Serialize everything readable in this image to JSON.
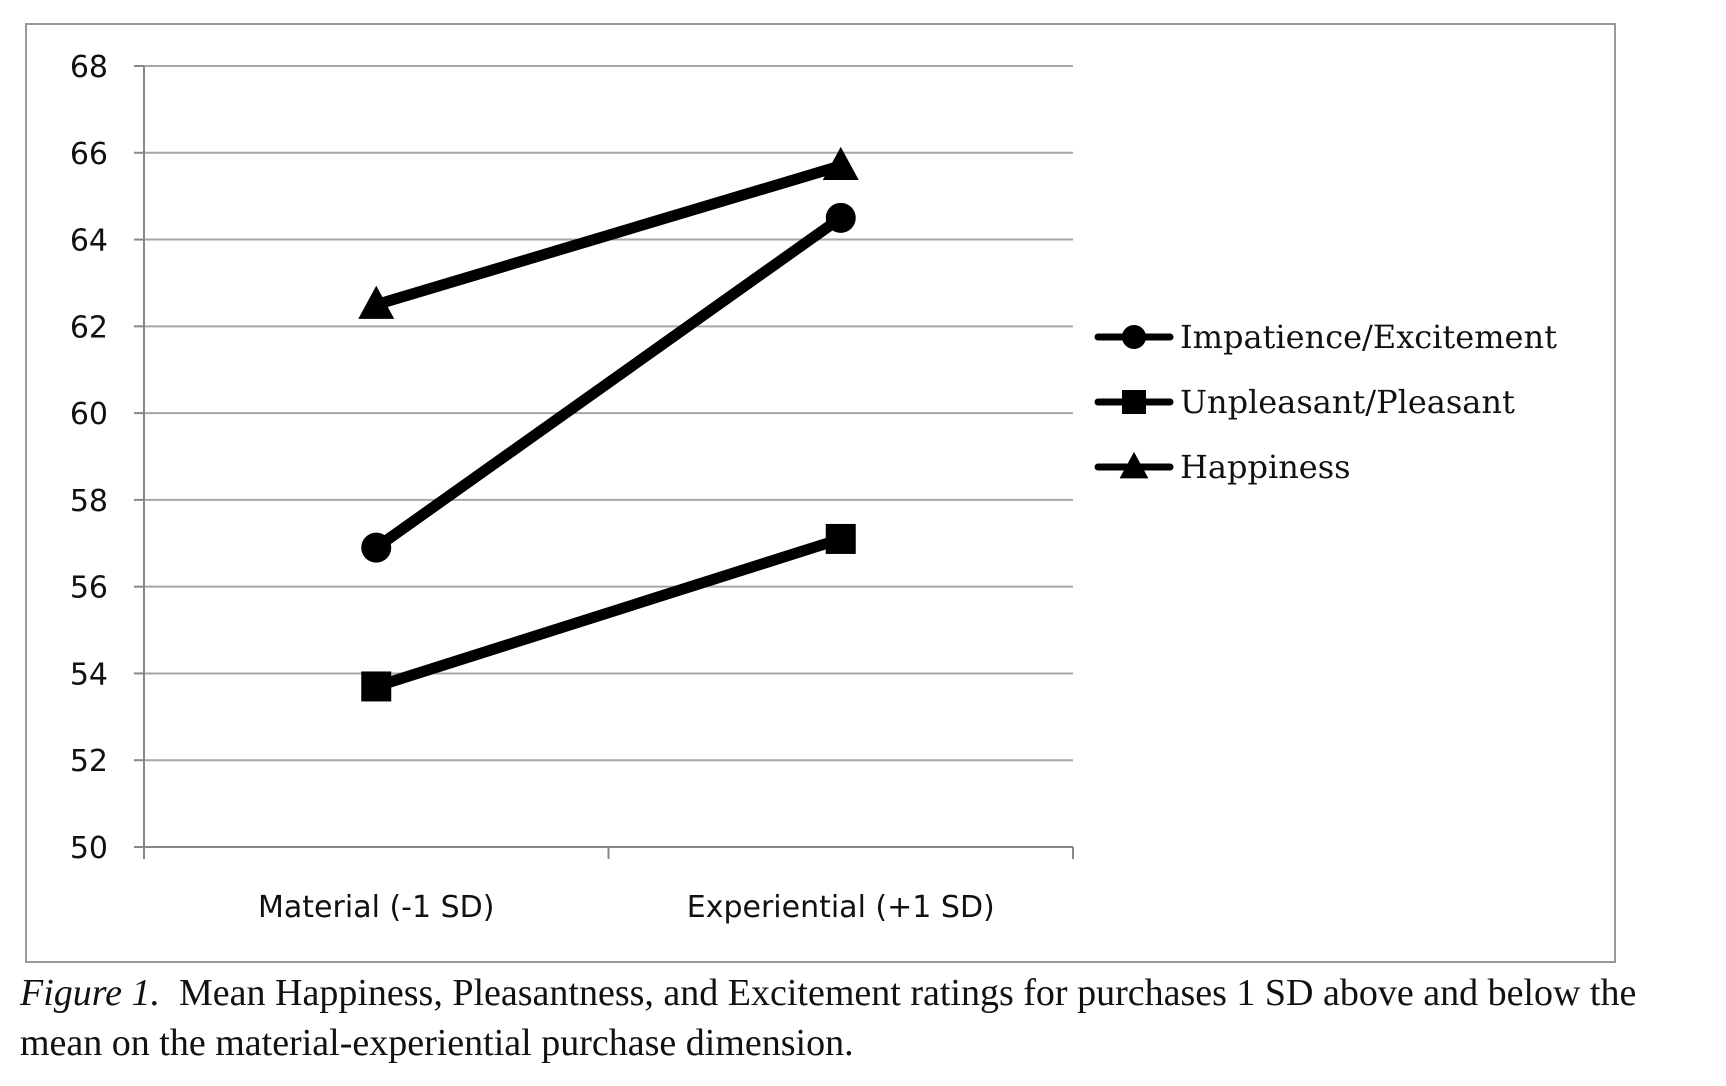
{
  "chart_data": {
    "type": "line",
    "categories": [
      "Material (-1 SD)",
      "Experiential (+1 SD)"
    ],
    "series": [
      {
        "name": "Impatience/Excitement",
        "marker": "circle",
        "values": [
          56.9,
          64.5
        ]
      },
      {
        "name": "Unpleasant/Pleasant",
        "marker": "square",
        "values": [
          53.7,
          57.1
        ]
      },
      {
        "name": "Happiness",
        "marker": "triangle",
        "values": [
          62.5,
          65.7
        ]
      }
    ],
    "ylim": [
      50,
      68
    ],
    "yticks": [
      "50",
      "52",
      "54",
      "56",
      "58",
      "60",
      "62",
      "64",
      "66",
      "68"
    ],
    "grid": true,
    "legend_position": "right",
    "line_color": "#000000",
    "grid_color": "#a6a6a6"
  },
  "caption": {
    "label": "Figure 1",
    "text": "Mean Happiness, Pleasantness, and Excitement ratings for purchases 1 SD above and below the mean on the material-experiential purchase dimension."
  }
}
